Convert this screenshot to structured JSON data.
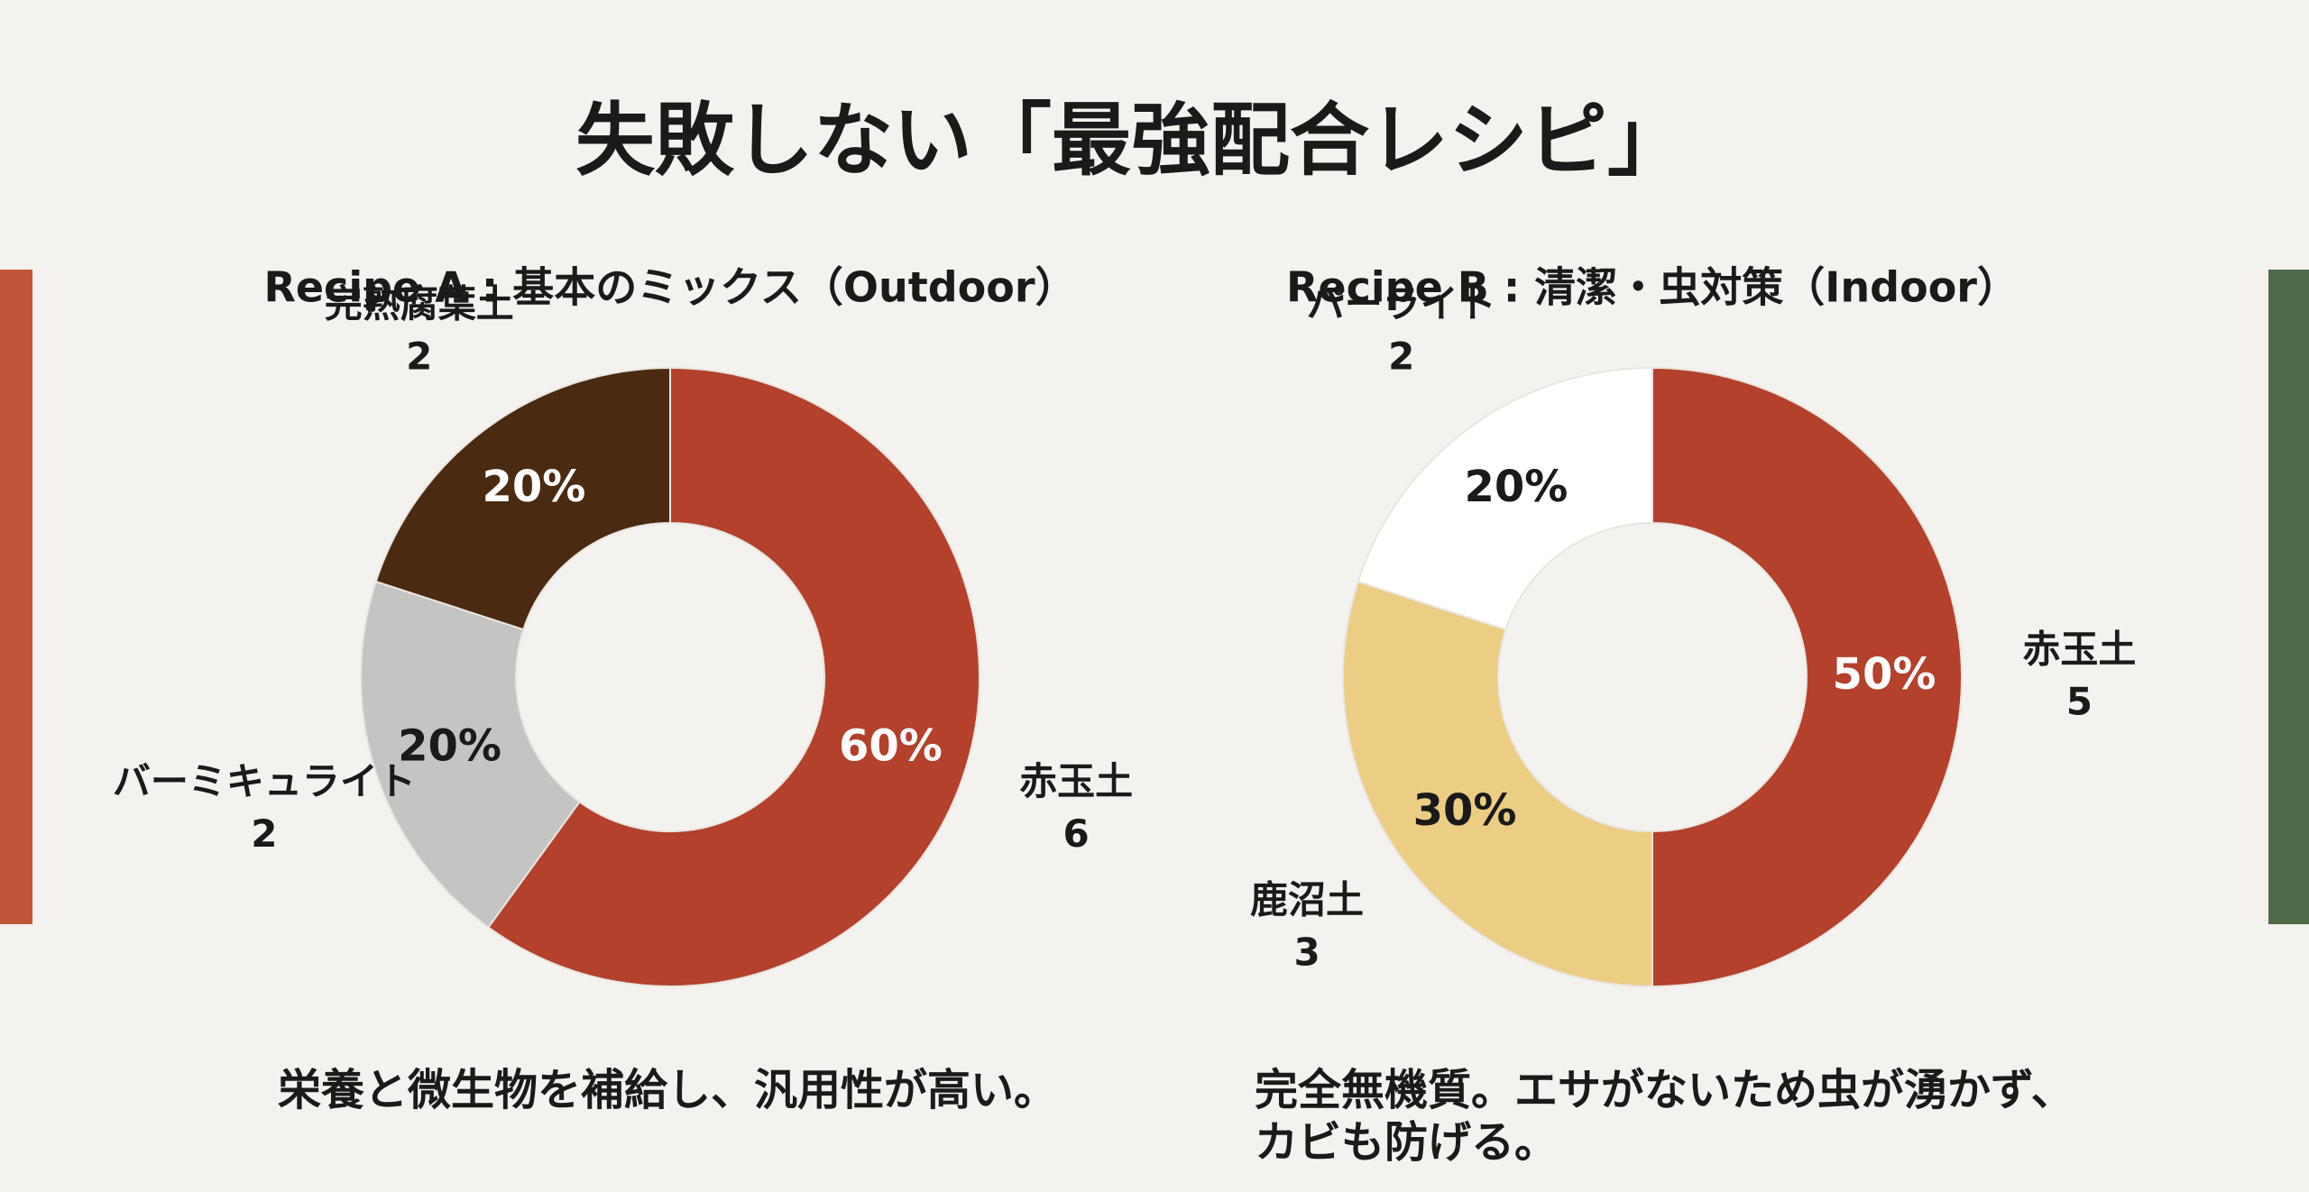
{
  "title": "失敗しない「最強配合レシピ」",
  "chart_data": [
    {
      "type": "donut",
      "title": "Recipe A : 基本のミックス（Outdoor）",
      "categories": [
        "赤玉土",
        "バーミキュライト",
        "完熟腐葉土"
      ],
      "values": [
        6,
        2,
        2
      ],
      "value_labels": [
        "60%",
        "20%",
        "20%"
      ],
      "colors": [
        "#b3412b",
        "#c4c4c2",
        "#4a2a10"
      ],
      "caption": "栄養と微生物を補給し、汎用性が高い。"
    },
    {
      "type": "donut",
      "title": "Recipe B : 清潔・虫対策（Indoor）",
      "categories": [
        "赤玉土",
        "鹿沼土",
        "パーライト"
      ],
      "values": [
        5,
        3,
        2
      ],
      "value_labels": [
        "50%",
        "30%",
        "20%"
      ],
      "colors": [
        "#b3412b",
        "#ebcd84",
        "#ffffff"
      ],
      "caption": "完全無機質。エサがないため虫が湧かず、カビも防げる。"
    }
  ]
}
